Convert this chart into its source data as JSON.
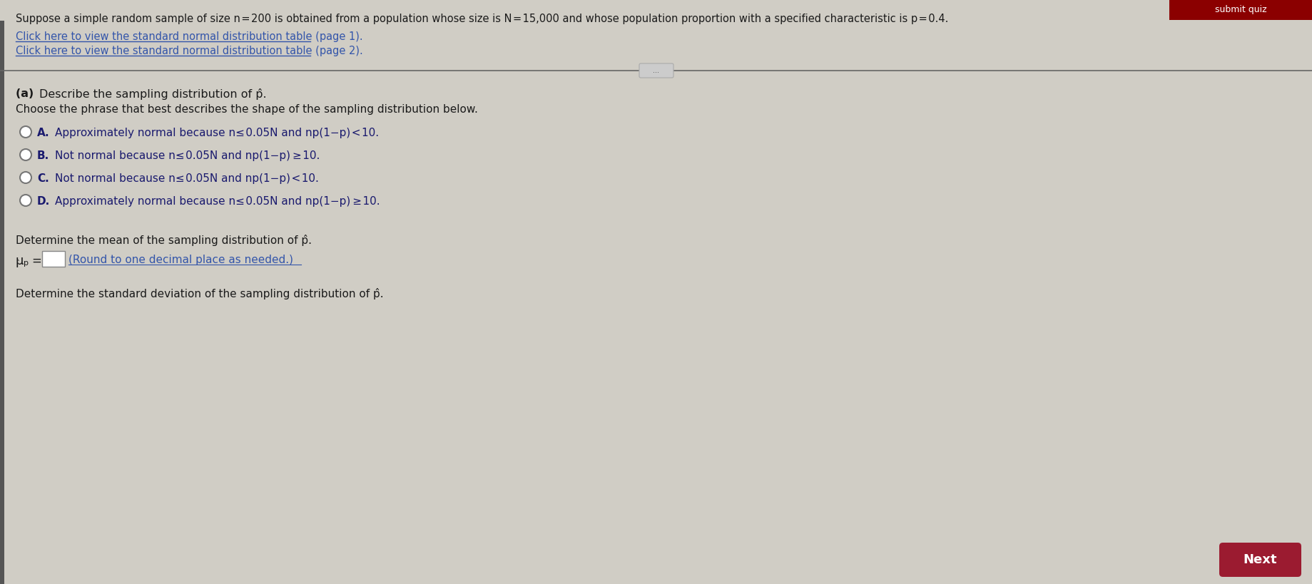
{
  "bg_color": "#d0cdc5",
  "panel_color": "#e6e3db",
  "title_bar_color": "#8b0000",
  "title_bar_text": "submit quiz",
  "top_text": "Suppose a simple random sample of size n = 200 is obtained from a population whose size is N = 15,000 and whose population proportion with a specified characteristic is p = 0.4.",
  "link1": "Click here to view the standard normal distribution table (page 1).",
  "link2": "Click here to view the standard normal distribution table (page 2).",
  "part_a_title_bold": "(a) ",
  "part_a_title_rest": "Describe the sampling distribution of p̂.",
  "part_a_subtitle": "Choose the phrase that best describes the shape of the sampling distribution below.",
  "options": [
    {
      "label": "A.",
      "text": "Approximately normal because n≤ 0.05N and np(1−p) < 10."
    },
    {
      "label": "B.",
      "text": "Not normal because n≤ 0.05N and np(1−p) ≥ 10."
    },
    {
      "label": "C.",
      "text": "Not normal because n≤ 0.05N and np(1−p) < 10."
    },
    {
      "label": "D.",
      "text": "Approximately normal because n≤ 0.05N and np(1−p) ≥ 10."
    }
  ],
  "mean_line1": "Determine the mean of the sampling distribution of p̂.",
  "mean_note": "(Round to one decimal place as needed.)",
  "std_line": "Determine the standard deviation of the sampling distribution of p̂.",
  "next_button_color": "#9b1b30",
  "next_button_text": "Next",
  "link_color": "#3355aa",
  "text_color": "#1a1a1a",
  "option_text_color": "#1a1a6e",
  "radio_stroke": "#777777",
  "divider_line_color": "#666666",
  "left_bar_color": "#333333",
  "ellipsis_bg": "#cccccc",
  "ellipsis_border": "#aaaaaa"
}
